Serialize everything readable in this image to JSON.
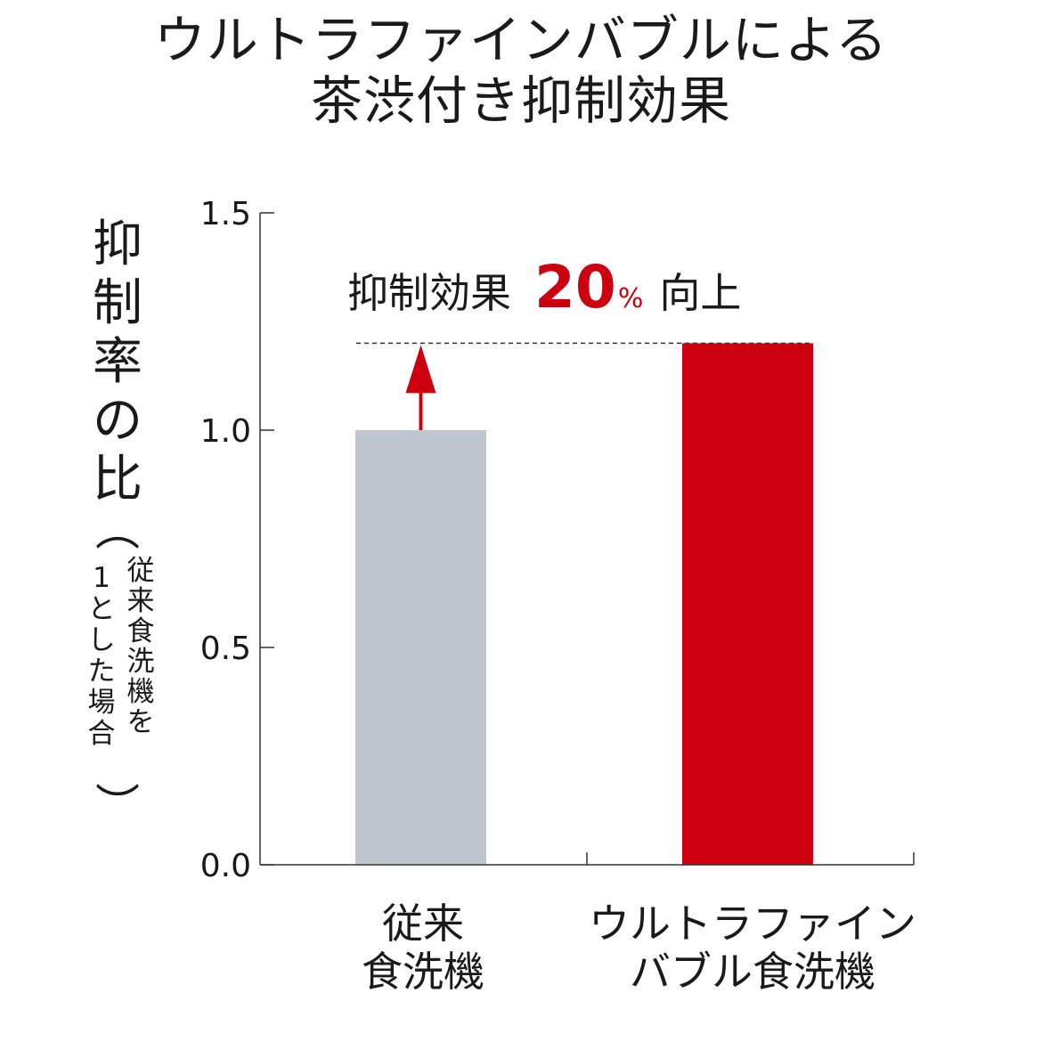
{
  "chart_data": {
    "type": "bar",
    "title_lines": [
      "ウルトラファインバブルによる",
      "茶渋付き抑制効果"
    ],
    "ylabel": {
      "main": [
        "抑",
        "制",
        "率",
        "の",
        "比"
      ],
      "paren_open": "︵",
      "note_col_a": [
        "従",
        "来",
        "食",
        "洗",
        "機",
        "を"
      ],
      "note_col_b": [
        "1",
        "と",
        "し",
        "た",
        "場",
        "合"
      ],
      "paren_close": "︶"
    },
    "categories": [
      {
        "lines": [
          "従来",
          "食洗機"
        ]
      },
      {
        "lines": [
          "ウルトラファイン",
          "バブル食洗機"
        ]
      }
    ],
    "values": [
      1.0,
      1.2
    ],
    "ylim": [
      0,
      1.5
    ],
    "yticks": [
      "0.0",
      "0.5",
      "1.0",
      "1.5"
    ],
    "colors": {
      "bar_conventional": "#c0c6cf",
      "bar_ufb": "#cc000f",
      "accent": "#cc000f",
      "axis": "#333333"
    },
    "annotation": {
      "text_before": "抑制効果",
      "number": "20",
      "percent": "%",
      "text_after": "向上"
    }
  }
}
